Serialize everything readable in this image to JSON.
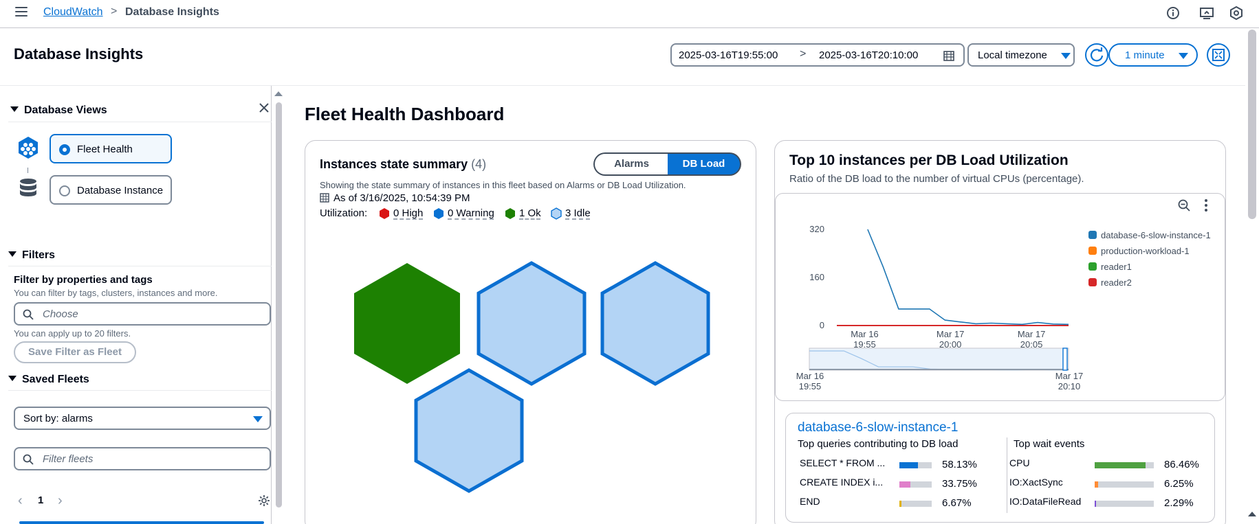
{
  "breadcrumb": {
    "root": "CloudWatch",
    "separator": ">",
    "current": "Database Insights"
  },
  "header": {
    "title": "Database Insights",
    "date_start": "2025-03-16T19:55:00",
    "date_arrow": ">",
    "date_end": "2025-03-16T20:10:00",
    "timezone": "Local timezone",
    "interval": "1 minute"
  },
  "sidebar": {
    "views_title": "Database Views",
    "views": [
      {
        "label": "Fleet Health",
        "selected": true
      },
      {
        "label": "Database Instance",
        "selected": false
      }
    ],
    "filters_title": "Filters",
    "filter_heading": "Filter by properties and tags",
    "filter_desc": "You can filter by tags, clusters, instances and more.",
    "filter_placeholder": "Choose",
    "filter_limit": "You can apply up to 20 filters.",
    "save_filter": "Save Filter as Fleet",
    "saved_fleets_title": "Saved Fleets",
    "sort_label": "Sort by: alarms",
    "fleet_search_placeholder": "Filter fleets",
    "page_prev": "‹",
    "page": "1",
    "page_next": "›"
  },
  "main": {
    "title": "Fleet Health Dashboard",
    "summary": {
      "title": "Instances state summary",
      "count": "(4)",
      "toggle_alarms": "Alarms",
      "toggle_dbload": "DB Load",
      "description": "Showing the state summary of instances in this fleet based on Alarms or DB Load Utilization.",
      "as_of": "As of 3/16/2025, 10:54:39 PM",
      "utilization_label": "Utilization:",
      "statuses": [
        {
          "label": "0 High",
          "color": "#d91515"
        },
        {
          "label": "0 Warning",
          "color": "#0972d3"
        },
        {
          "label": "1 Ok",
          "color": "#1d8102"
        },
        {
          "label": "3 Idle",
          "color": "#b3d4f5"
        }
      ],
      "hexagons": [
        {
          "state": "ok",
          "color": "#1d8102"
        },
        {
          "state": "idle",
          "color": "#b3d4f5"
        },
        {
          "state": "idle",
          "color": "#b3d4f5"
        },
        {
          "state": "idle",
          "color": "#b3d4f5"
        }
      ]
    },
    "top10": {
      "title": "Top 10 instances per DB Load Utilization",
      "subtitle": "Ratio of the DB load to the number of virtual CPUs (percentage).",
      "instance_card": {
        "name": "database-6-slow-instance-1",
        "queries_heading": "Top queries contributing to DB load",
        "waits_heading": "Top wait events",
        "queries": [
          {
            "label": "SELECT * FROM ...",
            "pct": "58.13%",
            "value": 58.13,
            "color": "#0972d3"
          },
          {
            "label": "CREATE INDEX i...",
            "pct": "33.75%",
            "value": 33.75,
            "color": "#e07fca"
          },
          {
            "label": "END",
            "pct": "6.67%",
            "value": 6.67,
            "color": "#e0b100"
          }
        ],
        "waits": [
          {
            "label": "CPU",
            "pct": "86.46%",
            "value": 86.46,
            "color": "#4fa141"
          },
          {
            "label": "IO:XactSync",
            "pct": "6.25%",
            "value": 6.25,
            "color": "#ff8c35"
          },
          {
            "label": "IO:DataFileRead",
            "pct": "2.29%",
            "value": 2.29,
            "color": "#7d4fd6"
          }
        ]
      }
    }
  },
  "chart_data": {
    "type": "line",
    "title": "",
    "xlabel": "",
    "ylabel": "",
    "ylim": [
      0,
      320
    ],
    "yticks": [
      "320",
      "160",
      "0"
    ],
    "xticks": [
      {
        "line1": "Mar 16",
        "line2": "19:55"
      },
      {
        "line1": "Mar 17",
        "line2": "20:00"
      },
      {
        "line1": "Mar 17",
        "line2": "20:05"
      }
    ],
    "navigator_ticks": [
      {
        "line1": "Mar 16",
        "line2": "19:55"
      },
      {
        "line1": "Mar 17",
        "line2": "20:10"
      }
    ],
    "x": [
      0,
      1,
      2,
      3,
      4,
      5,
      6,
      7,
      8,
      9,
      10,
      11,
      12,
      13,
      14,
      15
    ],
    "series": [
      {
        "name": "database-6-slow-instance-1",
        "color": "#1f77b4",
        "values": [
          null,
          null,
          320,
          195,
          55,
          55,
          55,
          18,
          12,
          6,
          8,
          6,
          4,
          10,
          5,
          4
        ]
      },
      {
        "name": "production-workload-1",
        "color": "#ff7f0e",
        "values": [
          0,
          0,
          0,
          0,
          0,
          0,
          0,
          0,
          0,
          0,
          0,
          0,
          0,
          0,
          0,
          0
        ]
      },
      {
        "name": "reader1",
        "color": "#2ca02c",
        "values": [
          0,
          0,
          0,
          0,
          0,
          0,
          0,
          0,
          0,
          0,
          0,
          0,
          0,
          0,
          0,
          0
        ]
      },
      {
        "name": "reader2",
        "color": "#d62728",
        "values": [
          0,
          0,
          0,
          0,
          0,
          0,
          0,
          0,
          0,
          0,
          0,
          0,
          0,
          0,
          0,
          0
        ]
      }
    ],
    "legend": "right",
    "grid": false
  }
}
